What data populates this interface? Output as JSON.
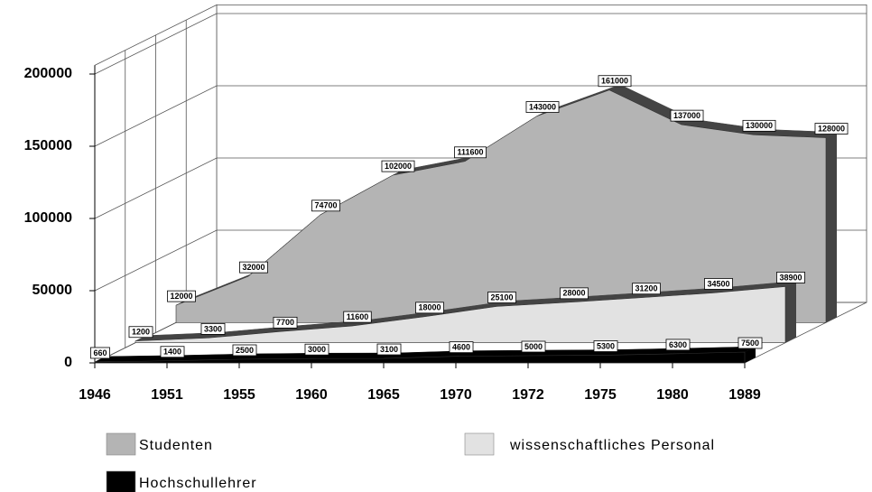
{
  "chart_data": {
    "type": "area",
    "categories": [
      "1946",
      "1951",
      "1955",
      "1960",
      "1965",
      "1970",
      "1972",
      "1975",
      "1980",
      "1989"
    ],
    "series": [
      {
        "name": "Studenten",
        "color": "#b4b4b4",
        "values": [
          12000,
          32000,
          74700,
          102000,
          111600,
          143000,
          161000,
          137000,
          130000,
          128000
        ]
      },
      {
        "name": "wissenschaftliches Personal",
        "color": "#e2e2e2",
        "values": [
          1200,
          3300,
          7700,
          11600,
          18000,
          25100,
          28000,
          31200,
          34500,
          38900
        ]
      },
      {
        "name": "Hochschullehrer",
        "color": "#000000",
        "values": [
          660,
          1400,
          2500,
          3000,
          3100,
          4600,
          5000,
          5300,
          6300,
          7500
        ]
      }
    ],
    "ylim": [
      0,
      206000
    ],
    "yticks": [
      0,
      50000,
      100000,
      150000,
      200000
    ],
    "grid": true
  }
}
